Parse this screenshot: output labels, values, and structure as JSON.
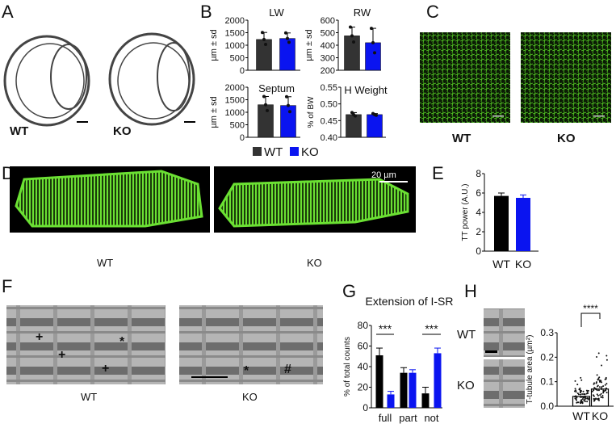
{
  "panels": {
    "A": {
      "letter": "A",
      "wt": "WT",
      "ko": "KO"
    },
    "B": {
      "letter": "B",
      "legend": [
        {
          "label": "WT",
          "color": "#333333"
        },
        {
          "label": "KO",
          "color": "#0a14f0"
        }
      ]
    },
    "C": {
      "letter": "C",
      "wt": "WT",
      "ko": "KO"
    },
    "D": {
      "letter": "D",
      "wt": "WT",
      "ko": "KO",
      "scale": "20 µm"
    },
    "E": {
      "letter": "E"
    },
    "F": {
      "letter": "F",
      "wt": "WT",
      "ko": "KO",
      "marks_wt": [
        "+",
        "+",
        "*",
        "+"
      ],
      "marks_ko": [
        "*",
        "#"
      ]
    },
    "G": {
      "letter": "G"
    },
    "H": {
      "letter": "H",
      "wt": "WT",
      "ko": "KO"
    }
  },
  "colors": {
    "wt": "#333333",
    "wt_dark": "#000000",
    "ko": "#0a14f0",
    "green": "#5ee02a"
  },
  "chart_data": [
    {
      "id": "LW",
      "type": "bar",
      "title": "LW",
      "ylabel": "µm ± sd",
      "categories": [
        "WT",
        "KO"
      ],
      "values": [
        1230,
        1270
      ],
      "errors": [
        280,
        220
      ],
      "ylim": [
        0,
        2000
      ],
      "yticks": [
        "0",
        "500",
        "1000",
        "1500",
        "2000"
      ]
    },
    {
      "id": "RW",
      "type": "bar",
      "title": "RW",
      "ylabel": "µm ± sd",
      "categories": [
        "WT",
        "KO"
      ],
      "values": [
        475,
        420
      ],
      "errors": [
        70,
        115
      ],
      "ylim": [
        200,
        600
      ],
      "yticks": [
        "200",
        "300",
        "400",
        "500",
        "600"
      ]
    },
    {
      "id": "Septum",
      "type": "bar",
      "title": "Septum",
      "ylabel": "µm ± sd",
      "categories": [
        "WT",
        "KO"
      ],
      "values": [
        1300,
        1270
      ],
      "errors": [
        330,
        350
      ],
      "ylim": [
        0,
        2000
      ],
      "yticks": [
        "0",
        "500",
        "1000",
        "1500",
        "2000"
      ]
    },
    {
      "id": "HW",
      "type": "bar",
      "title": "H Weight",
      "ylabel": "% of BW",
      "categories": [
        "WT",
        "KO"
      ],
      "values": [
        0.468,
        0.468
      ],
      "errors": [
        0.006,
        0.003
      ],
      "ylim": [
        0.4,
        0.55
      ],
      "yticks": [
        "0.40",
        "0.45",
        "0.50",
        "0.55"
      ]
    },
    {
      "id": "E",
      "type": "bar",
      "title": "",
      "ylabel": "TT power (A.U.)",
      "categories": [
        "WT",
        "KO"
      ],
      "values": [
        5.7,
        5.5
      ],
      "errors": [
        0.3,
        0.3
      ],
      "ylim": [
        0,
        8
      ],
      "yticks": [
        "0",
        "2",
        "4",
        "6",
        "8"
      ]
    },
    {
      "id": "G",
      "type": "bar",
      "title": "Extension of I-SR",
      "ylabel": "% of total counts",
      "categories": [
        "full",
        "part",
        "not"
      ],
      "series": [
        {
          "name": "WT",
          "values": [
            51,
            34,
            14
          ],
          "errors": [
            7,
            5,
            6
          ]
        },
        {
          "name": "KO",
          "values": [
            13,
            34,
            53
          ],
          "errors": [
            3,
            3,
            5
          ]
        }
      ],
      "significance": [
        "***",
        "",
        "***"
      ],
      "ylim": [
        0,
        80
      ],
      "yticks": [
        "0",
        "20",
        "40",
        "60",
        "80"
      ]
    },
    {
      "id": "H",
      "type": "bar",
      "title": "",
      "ylabel": "T-tubule area (µm²)",
      "categories": [
        "WT",
        "KO"
      ],
      "values": [
        0.04,
        0.07
      ],
      "ylim": [
        0,
        0.3
      ],
      "yticks": [
        "0.0",
        "0.1",
        "0.2",
        "0.3"
      ],
      "significance": "****"
    }
  ]
}
